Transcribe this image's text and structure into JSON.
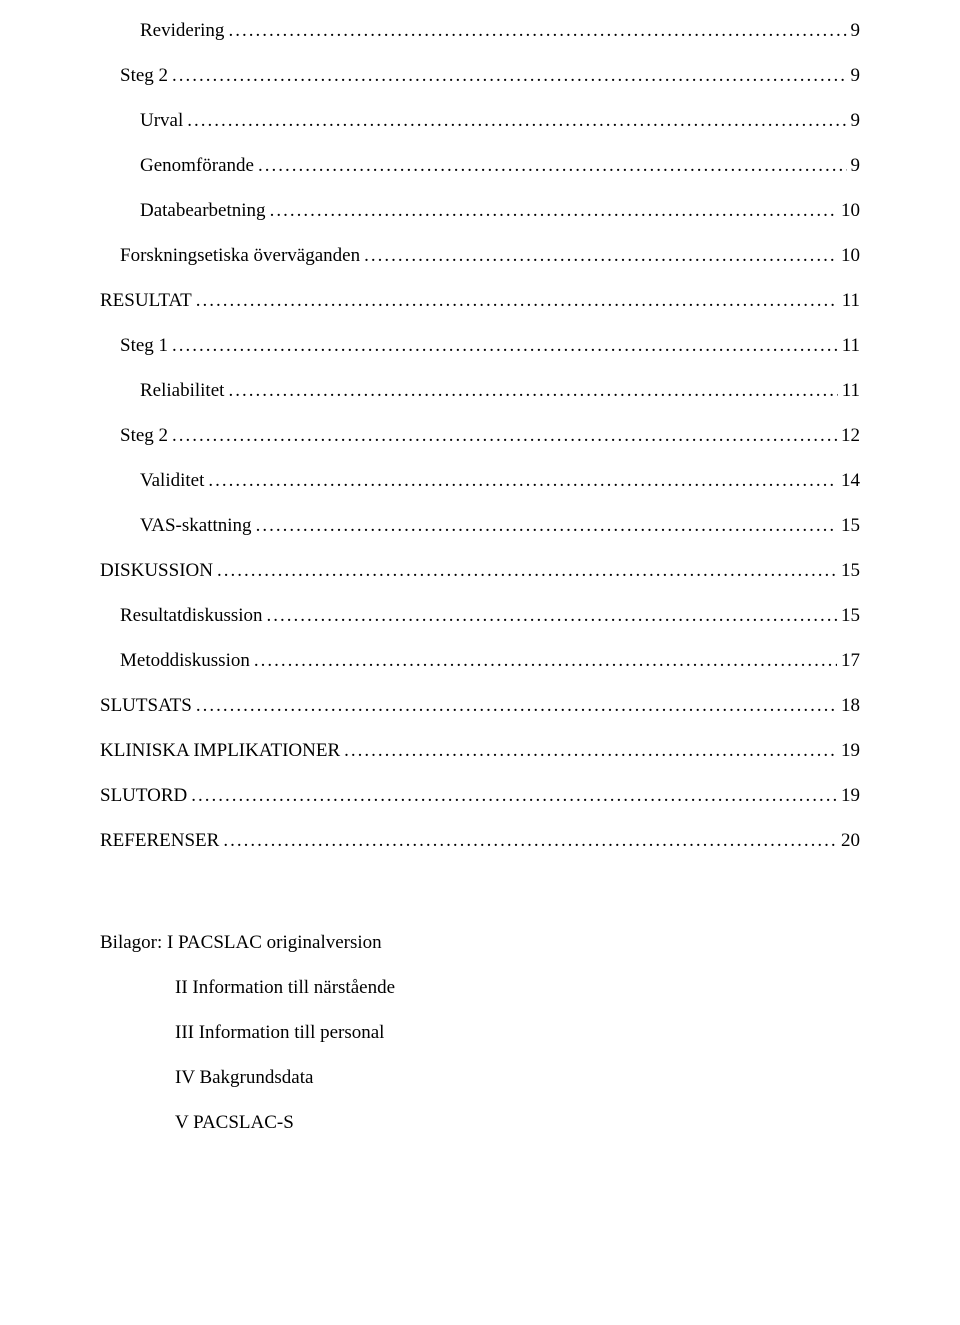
{
  "toc": [
    {
      "label": "Revidering",
      "page": "9",
      "indent": 2
    },
    {
      "label": "Steg 2",
      "page": "9",
      "indent": 1
    },
    {
      "label": "Urval",
      "page": "9",
      "indent": 2
    },
    {
      "label": "Genomförande",
      "page": "9",
      "indent": 2
    },
    {
      "label": "Databearbetning",
      "page": "10",
      "indent": 2
    },
    {
      "label": "Forskningsetiska överväganden",
      "page": "10",
      "indent": 1
    },
    {
      "label": "RESULTAT",
      "page": "11",
      "indent": 0
    },
    {
      "label": "Steg 1",
      "page": "11",
      "indent": 1
    },
    {
      "label": "Reliabilitet",
      "page": "11",
      "indent": 2
    },
    {
      "label": "Steg 2",
      "page": "12",
      "indent": 1
    },
    {
      "label": "Validitet",
      "page": "14",
      "indent": 2
    },
    {
      "label": "VAS-skattning",
      "page": "15",
      "indent": 2
    },
    {
      "label": "DISKUSSION",
      "page": "15",
      "indent": 0
    },
    {
      "label": "Resultatdiskussion",
      "page": "15",
      "indent": 1
    },
    {
      "label": "Metoddiskussion",
      "page": "17",
      "indent": 1
    },
    {
      "label": "SLUTSATS",
      "page": "18",
      "indent": 0
    },
    {
      "label": "KLINISKA IMPLIKATIONER",
      "page": "19",
      "indent": 0
    },
    {
      "label": "SLUTORD",
      "page": "19",
      "indent": 0
    },
    {
      "label": "REFERENSER",
      "page": "20",
      "indent": 0
    }
  ],
  "appendix": {
    "heading": "Bilagor: I PACSLAC originalversion",
    "items": [
      "II Information till närstående",
      "III Information till personal",
      "IV Bakgrundsdata",
      "V PACSLAC-S"
    ]
  }
}
